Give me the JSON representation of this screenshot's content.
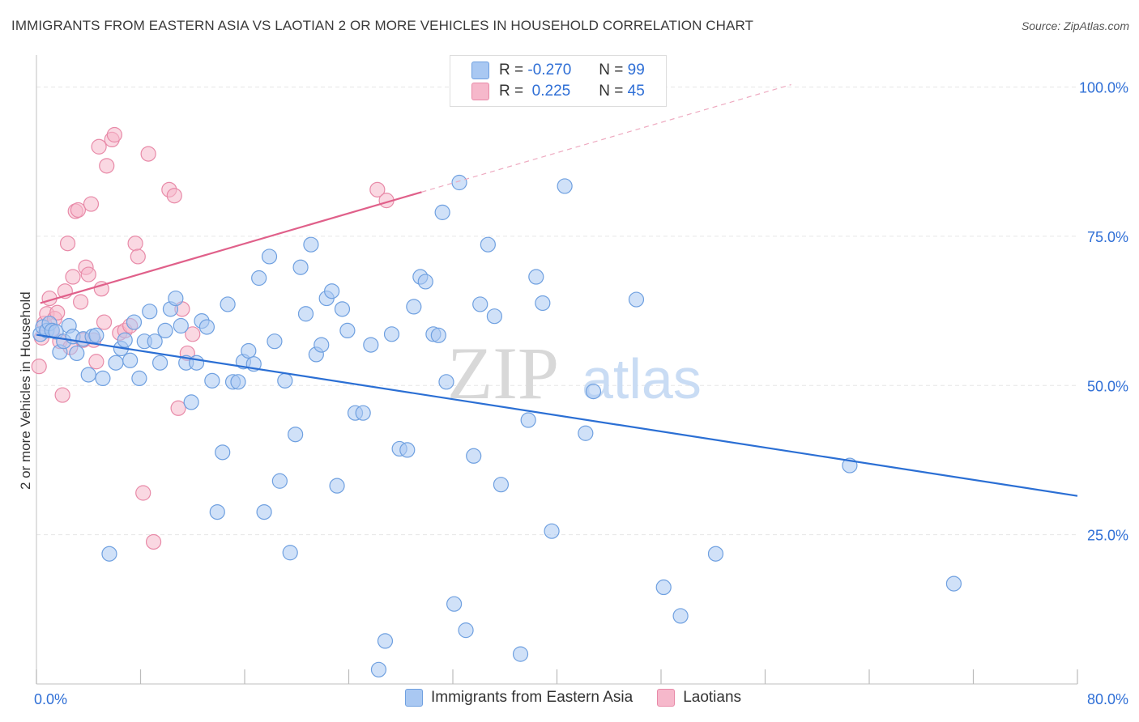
{
  "title": "IMMIGRANTS FROM EASTERN ASIA VS LAOTIAN 2 OR MORE VEHICLES IN HOUSEHOLD CORRELATION CHART",
  "source": "Source: ZipAtlas.com",
  "watermark": {
    "zip": "ZIP",
    "atlas": "atlas"
  },
  "legend": {
    "rows": [
      {
        "r_label": "R =",
        "r_value": "-0.270",
        "n_label": "N =",
        "n_value": "99"
      },
      {
        "r_label": "R =",
        "r_value": " 0.225",
        "n_label": "N =",
        "n_value": "45"
      }
    ]
  },
  "colors": {
    "blue_fill": "#a9c8f2",
    "blue_stroke": "#6fa0e0",
    "blue_line": "#2b6fd4",
    "pink_fill": "#f6b8cb",
    "pink_stroke": "#e88aa8",
    "pink_line": "#e0608a",
    "tick_text": "#2f6fd6",
    "grid": "#e6e6e6"
  },
  "chart_data": {
    "type": "scatter",
    "title": "IMMIGRANTS FROM EASTERN ASIA VS LAOTIAN 2 OR MORE VEHICLES IN HOUSEHOLD CORRELATION CHART",
    "xlabel": "",
    "ylabel": "2 or more Vehicles in Household",
    "xlim": [
      0,
      80
    ],
    "ylim": [
      0,
      104
    ],
    "x_tick_labels": [
      "0.0%",
      "80.0%"
    ],
    "y_ticks": [
      25,
      50,
      75,
      100
    ],
    "y_tick_labels": [
      "25.0%",
      "50.0%",
      "75.0%",
      "100.0%"
    ],
    "grid": true,
    "legend_position": "bottom",
    "series": [
      {
        "name": "Immigrants from Eastern Asia",
        "color": "#a9c8f2",
        "trend": {
          "x": [
            0,
            80
          ],
          "y": [
            58.5,
            31.5
          ]
        },
        "points": [
          [
            0.3,
            58.6
          ],
          [
            0.5,
            59.8
          ],
          [
            0.8,
            59.2
          ],
          [
            1.0,
            60.4
          ],
          [
            1.2,
            59.2
          ],
          [
            1.5,
            59.0
          ],
          [
            1.8,
            55.6
          ],
          [
            2.1,
            57.4
          ],
          [
            2.5,
            60.0
          ],
          [
            2.8,
            58.2
          ],
          [
            3.1,
            55.4
          ],
          [
            3.6,
            57.8
          ],
          [
            4.0,
            51.8
          ],
          [
            4.3,
            58.2
          ],
          [
            4.6,
            58.4
          ],
          [
            5.1,
            51.2
          ],
          [
            5.6,
            21.8
          ],
          [
            6.1,
            53.8
          ],
          [
            6.5,
            56.2
          ],
          [
            6.8,
            57.6
          ],
          [
            7.2,
            54.2
          ],
          [
            7.5,
            60.6
          ],
          [
            7.9,
            51.2
          ],
          [
            8.3,
            57.4
          ],
          [
            8.7,
            62.4
          ],
          [
            9.1,
            57.4
          ],
          [
            9.5,
            53.8
          ],
          [
            9.9,
            59.2
          ],
          [
            10.3,
            62.8
          ],
          [
            10.7,
            64.6
          ],
          [
            11.1,
            60.0
          ],
          [
            11.5,
            53.8
          ],
          [
            11.9,
            47.2
          ],
          [
            12.3,
            53.8
          ],
          [
            12.7,
            60.8
          ],
          [
            13.1,
            59.8
          ],
          [
            13.5,
            50.8
          ],
          [
            13.9,
            28.8
          ],
          [
            14.3,
            38.8
          ],
          [
            14.7,
            63.6
          ],
          [
            15.1,
            50.6
          ],
          [
            15.5,
            50.6
          ],
          [
            15.9,
            54.0
          ],
          [
            16.3,
            55.8
          ],
          [
            16.7,
            53.6
          ],
          [
            17.1,
            68.0
          ],
          [
            17.5,
            28.8
          ],
          [
            17.9,
            71.6
          ],
          [
            18.3,
            57.4
          ],
          [
            18.7,
            34.0
          ],
          [
            19.1,
            50.8
          ],
          [
            19.5,
            22.0
          ],
          [
            19.9,
            41.8
          ],
          [
            20.3,
            69.8
          ],
          [
            20.7,
            62.0
          ],
          [
            21.1,
            73.6
          ],
          [
            21.5,
            55.2
          ],
          [
            21.9,
            56.8
          ],
          [
            22.3,
            64.6
          ],
          [
            22.7,
            65.8
          ],
          [
            23.1,
            33.2
          ],
          [
            23.5,
            62.8
          ],
          [
            23.9,
            59.2
          ],
          [
            24.5,
            45.4
          ],
          [
            25.1,
            45.4
          ],
          [
            25.7,
            56.8
          ],
          [
            26.3,
            2.4
          ],
          [
            26.8,
            7.2
          ],
          [
            27.3,
            58.6
          ],
          [
            27.9,
            39.4
          ],
          [
            28.5,
            39.2
          ],
          [
            29.0,
            63.2
          ],
          [
            29.5,
            68.2
          ],
          [
            29.9,
            67.4
          ],
          [
            30.5,
            58.6
          ],
          [
            30.9,
            58.4
          ],
          [
            31.2,
            79.0
          ],
          [
            31.5,
            50.6
          ],
          [
            32.1,
            13.4
          ],
          [
            32.5,
            84.0
          ],
          [
            33.0,
            9.0
          ],
          [
            33.6,
            38.2
          ],
          [
            34.1,
            63.6
          ],
          [
            34.7,
            73.6
          ],
          [
            35.2,
            61.6
          ],
          [
            35.7,
            33.4
          ],
          [
            37.2,
            5.0
          ],
          [
            37.8,
            44.2
          ],
          [
            38.4,
            68.2
          ],
          [
            38.9,
            63.8
          ],
          [
            39.6,
            25.6
          ],
          [
            40.6,
            83.4
          ],
          [
            42.2,
            42.0
          ],
          [
            42.8,
            49.0
          ],
          [
            46.1,
            64.4
          ],
          [
            48.2,
            16.2
          ],
          [
            49.5,
            11.4
          ],
          [
            52.2,
            21.8
          ],
          [
            62.5,
            36.6
          ],
          [
            70.5,
            16.8
          ]
        ]
      },
      {
        "name": "Laotians",
        "color": "#f6b8cb",
        "trend": {
          "x": [
            0.3,
            29.6
          ],
          "y": [
            63.8,
            82.4
          ]
        },
        "trend_ext": {
          "x": [
            29.6,
            58.0
          ],
          "y": [
            82.4,
            100.4
          ]
        },
        "points": [
          [
            0.2,
            53.2
          ],
          [
            0.4,
            58.0
          ],
          [
            0.6,
            60.4
          ],
          [
            0.8,
            62.0
          ],
          [
            1.0,
            64.6
          ],
          [
            1.2,
            59.2
          ],
          [
            1.4,
            61.2
          ],
          [
            1.6,
            62.2
          ],
          [
            1.8,
            57.4
          ],
          [
            2.0,
            48.4
          ],
          [
            2.2,
            65.8
          ],
          [
            2.4,
            73.8
          ],
          [
            2.6,
            56.4
          ],
          [
            2.8,
            68.2
          ],
          [
            3.0,
            79.2
          ],
          [
            3.2,
            79.4
          ],
          [
            3.4,
            64.0
          ],
          [
            3.6,
            57.6
          ],
          [
            3.8,
            69.8
          ],
          [
            4.0,
            68.6
          ],
          [
            4.2,
            80.4
          ],
          [
            4.4,
            57.6
          ],
          [
            4.6,
            54.0
          ],
          [
            4.8,
            90.0
          ],
          [
            5.0,
            66.2
          ],
          [
            5.2,
            60.6
          ],
          [
            5.4,
            86.8
          ],
          [
            5.8,
            91.2
          ],
          [
            6.0,
            92.0
          ],
          [
            6.4,
            58.8
          ],
          [
            6.8,
            59.2
          ],
          [
            7.2,
            60.0
          ],
          [
            7.6,
            73.8
          ],
          [
            7.8,
            71.6
          ],
          [
            8.2,
            32.0
          ],
          [
            8.6,
            88.8
          ],
          [
            9.0,
            23.8
          ],
          [
            10.2,
            82.8
          ],
          [
            10.6,
            81.8
          ],
          [
            10.9,
            46.2
          ],
          [
            11.2,
            62.8
          ],
          [
            11.6,
            55.4
          ],
          [
            12.0,
            58.6
          ],
          [
            26.2,
            82.8
          ],
          [
            26.9,
            81.0
          ]
        ]
      }
    ]
  }
}
